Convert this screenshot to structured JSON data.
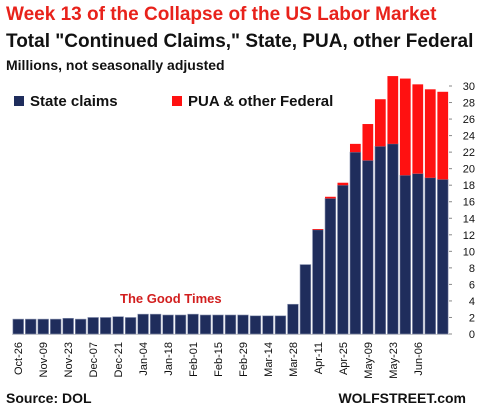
{
  "header": {
    "title": "Week 13 of the Collapse of the US Labor Market",
    "subtitle": "Total \"Continued Claims,\" State, PUA, other Federal",
    "units": "Millions, not seasonally adjusted"
  },
  "footer": {
    "source": "Source: DOL",
    "brand": "WOLFSTREET.com"
  },
  "colors": {
    "state": "#1f2d5c",
    "federal": "#ff1111",
    "title": "#e8221b",
    "annotation": "#d21e1e"
  },
  "chart_data": {
    "type": "bar",
    "stacked": true,
    "ylim": [
      0,
      30
    ],
    "y_ticks": [
      0,
      2,
      4,
      6,
      8,
      10,
      12,
      14,
      16,
      18,
      20,
      22,
      24,
      26,
      28,
      30
    ],
    "y_axis_side": "right",
    "grid": false,
    "legend_position": "top-left",
    "annotation": "The Good Times",
    "x_tick_labels": [
      "Oct-26",
      "Nov-09",
      "Nov-23",
      "Dec-07",
      "Dec-21",
      "Jan-04",
      "Jan-18",
      "Feb-01",
      "Feb-15",
      "Feb-29",
      "Mar-14",
      "Mar-28",
      "Apr-11",
      "Apr-25",
      "May-09",
      "May-23",
      "Jun-06"
    ],
    "series": [
      {
        "name": "State claims",
        "values": [
          1.8,
          1.8,
          1.8,
          1.8,
          1.9,
          1.8,
          2.0,
          2.0,
          2.1,
          2.0,
          2.4,
          2.4,
          2.3,
          2.3,
          2.4,
          2.3,
          2.3,
          2.3,
          2.3,
          2.2,
          2.2,
          2.2,
          3.6,
          8.4,
          12.6,
          16.4,
          18.0,
          22.0,
          21.0,
          22.7,
          23.0,
          19.2,
          19.4,
          18.9,
          18.7
        ]
      },
      {
        "name": "PUA & other Federal",
        "values": [
          0,
          0,
          0,
          0,
          0,
          0,
          0,
          0,
          0,
          0,
          0,
          0,
          0,
          0,
          0,
          0,
          0,
          0,
          0,
          0,
          0,
          0,
          0,
          0,
          0.1,
          0.2,
          0.3,
          1.0,
          4.4,
          5.7,
          8.2,
          11.7,
          10.8,
          10.7,
          10.6
        ]
      }
    ]
  }
}
